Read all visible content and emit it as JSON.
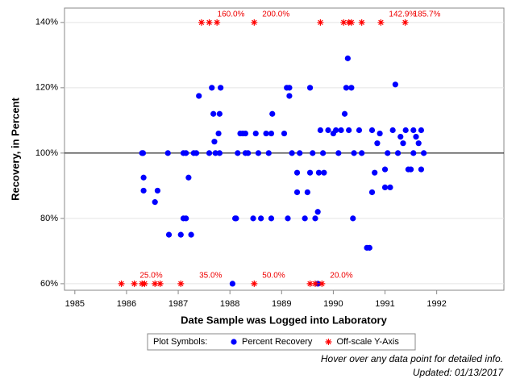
{
  "chart_data": {
    "type": "scatter",
    "x_label": "Date Sample was Logged into Laboratory",
    "y_label": "Recovery, in Percent",
    "xlim": [
      1984.8,
      1993.3
    ],
    "xticks": [
      1985,
      1986,
      1987,
      1988,
      1989,
      1990,
      1991,
      1992
    ],
    "ylim": [
      58,
      144.4
    ],
    "yticks": [
      {
        "value": 60,
        "label": "60%"
      },
      {
        "value": 80,
        "label": "80%"
      },
      {
        "value": 100,
        "label": "100%"
      },
      {
        "value": 120,
        "label": "120%"
      },
      {
        "value": 140,
        "label": "140%"
      }
    ],
    "grid": true,
    "reference_line": 100,
    "legend_title": "Plot Symbols:",
    "series": [
      {
        "name": "Percent Recovery",
        "color": "#0000ff",
        "marker": "circle",
        "x": [
          1986.3,
          1986.32,
          1986.33,
          1986.33,
          1986.55,
          1986.6,
          1986.8,
          1986.82,
          1987.05,
          1987.1,
          1987.15,
          1987.1,
          1987.15,
          1987.2,
          1987.25,
          1987.3,
          1987.35,
          1987.4,
          1987.6,
          1987.65,
          1987.68,
          1987.7,
          1987.72,
          1987.78,
          1987.8,
          1987.82,
          1987.8,
          1988.1,
          1988.12,
          1988.05,
          1988.15,
          1988.2,
          1988.25,
          1988.3,
          1988.3,
          1988.35,
          1988.45,
          1988.5,
          1988.55,
          1988.6,
          1988.7,
          1988.75,
          1988.8,
          1988.82,
          1988.8,
          1989.05,
          1989.1,
          1989.15,
          1989.12,
          1989.15,
          1989.2,
          1989.3,
          1989.3,
          1989.35,
          1989.45,
          1989.5,
          1989.55,
          1989.55,
          1989.6,
          1989.65,
          1989.7,
          1989.72,
          1989.75,
          1989.8,
          1989.82,
          1989.9,
          1990.0,
          1990.05,
          1990.1,
          1990.15,
          1990.22,
          1990.25,
          1990.28,
          1990.3,
          1990.35,
          1990.38,
          1990.4,
          1990.5,
          1990.55,
          1990.65,
          1990.7,
          1990.75,
          1990.75,
          1990.8,
          1990.85,
          1990.9,
          1991.0,
          1991.0,
          1991.05,
          1991.1,
          1991.15,
          1991.2,
          1991.25,
          1991.3,
          1991.35,
          1991.4,
          1991.45,
          1991.5,
          1991.55,
          1991.55,
          1991.6,
          1991.65,
          1991.7,
          1991.7,
          1991.75,
          1989.7
        ],
        "values": [
          100,
          100,
          92.5,
          88.5,
          85,
          88.5,
          100,
          75,
          75,
          80,
          80,
          100,
          100,
          92.5,
          75,
          100,
          100,
          117.5,
          100,
          120,
          112,
          103.5,
          100,
          106,
          112,
          120,
          100,
          80,
          80,
          60,
          100,
          106,
          106,
          100,
          106,
          100,
          80,
          106,
          100,
          80,
          106,
          100,
          106,
          112,
          80,
          106,
          120,
          120,
          80,
          117.5,
          100,
          94,
          88,
          100,
          80,
          88,
          94,
          120,
          100,
          80,
          82,
          94,
          107,
          100,
          94,
          107,
          106,
          107,
          100,
          107,
          112,
          120,
          129,
          107,
          120,
          80,
          100,
          107,
          100,
          71,
          71,
          88,
          107,
          94,
          103,
          106,
          95,
          89.5,
          100,
          89.5,
          107,
          121,
          100,
          105,
          103,
          107,
          95,
          95,
          100,
          107,
          105,
          103,
          107,
          95,
          100,
          60
        ]
      },
      {
        "name": "Off-scale Y-Axis",
        "color": "#ff0000",
        "marker": "asterisk",
        "x": [
          1987.45,
          1987.6,
          1987.75,
          1988.47,
          1989.75,
          1990.2,
          1990.3,
          1990.35,
          1990.55,
          1990.92,
          1991.39,
          1985.9,
          1986.15,
          1986.3,
          1986.35,
          1986.55,
          1986.65,
          1987.05,
          1988.47,
          1989.55,
          1989.65,
          1989.78
        ],
        "values": [
          140,
          140,
          140,
          140,
          140,
          140,
          140,
          140,
          140,
          140,
          140,
          60,
          60,
          60,
          60,
          60,
          60,
          60,
          60,
          60,
          60,
          60
        ]
      }
    ],
    "annotations": [
      {
        "x": 1987.6,
        "y": 140,
        "text": "160.0%"
      },
      {
        "x": 1988.47,
        "y": 140,
        "text": "200.0%"
      },
      {
        "x": 1990.92,
        "y": 140,
        "text": "142.9%"
      },
      {
        "x": 1991.39,
        "y": 140,
        "text": "185.7%"
      },
      {
        "x": 1986.1,
        "y": 60,
        "text": "25.0%"
      },
      {
        "x": 1987.25,
        "y": 60,
        "text": "35.0%"
      },
      {
        "x": 1988.47,
        "y": 60,
        "text": "50.0%"
      },
      {
        "x": 1989.78,
        "y": 60,
        "text": "20.0%"
      }
    ],
    "footnotes": [
      "Hover over any data point for detailed info.",
      "Updated: 01/13/2017"
    ]
  }
}
